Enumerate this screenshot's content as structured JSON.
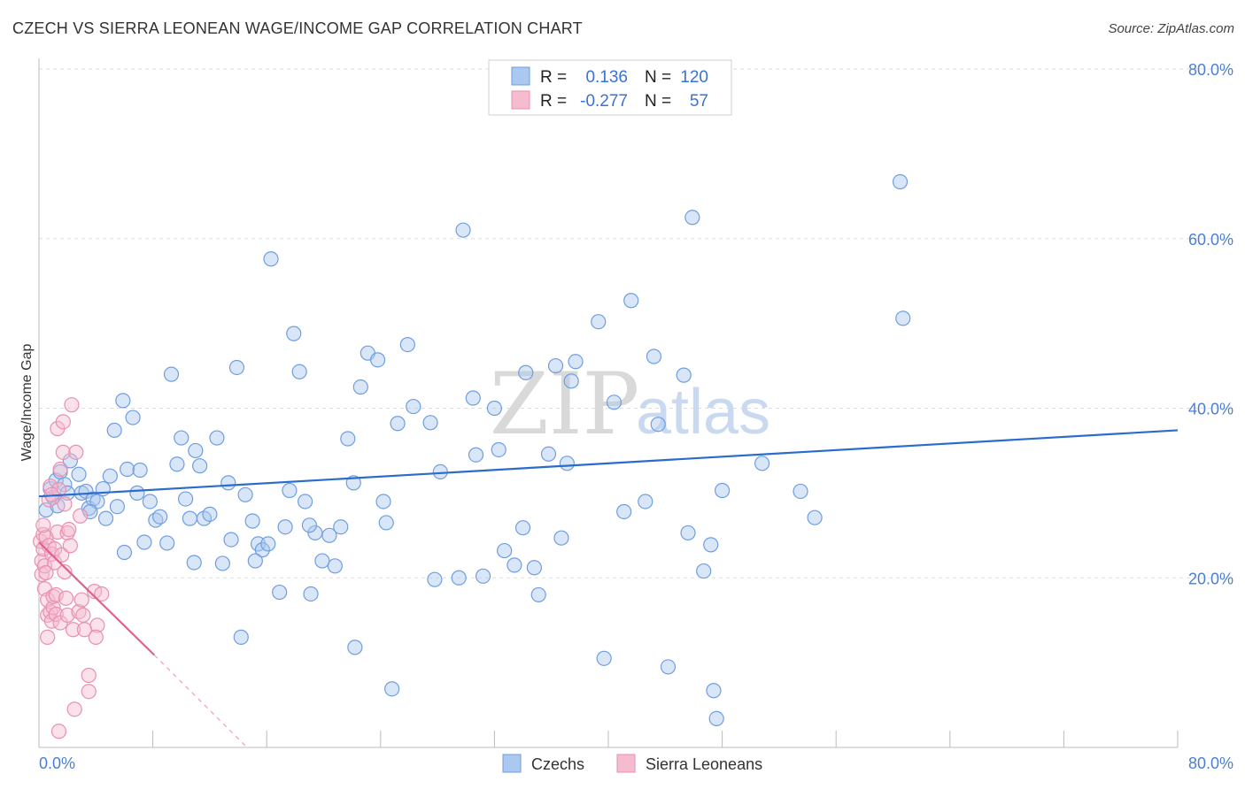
{
  "title": "CZECH VS SIERRA LEONEAN WAGE/INCOME GAP CORRELATION CHART",
  "source": "Source: ZipAtlas.com",
  "watermark": {
    "zip": "ZIP",
    "atlas": "atlas"
  },
  "colors": {
    "czech_fill": "#aac8f0",
    "czech_stroke": "#6f9ee0",
    "czech_line": "#2a6ccc",
    "sierra_fill": "#f5bcd0",
    "sierra_stroke": "#ea8fb0",
    "sierra_line": "#e0608e",
    "tick": "#4a7fd4",
    "grid": "#dddddd"
  },
  "legend": {
    "rows": [
      {
        "r_label": "R =",
        "r_value": "0.136",
        "n_label": "N =",
        "n_value": "120"
      },
      {
        "r_label": "R =",
        "r_value": "-0.277",
        "n_label": "N =",
        "n_value": "57"
      }
    ]
  },
  "bottom_legend": [
    "Czechs",
    "Sierra Leoneans"
  ],
  "chart_data": {
    "type": "scatter",
    "title": "CZECH VS SIERRA LEONEAN WAGE/INCOME GAP CORRELATION CHART",
    "xlabel": "",
    "ylabel": "Wage/Income Gap",
    "xlim": [
      0,
      80
    ],
    "ylim": [
      0,
      80
    ],
    "x_tick_labels": [
      "0.0%",
      "80.0%"
    ],
    "y_tick_labels": [
      "20.0%",
      "40.0%",
      "60.0%",
      "80.0%"
    ],
    "y_ticks": [
      20,
      40,
      60,
      80
    ],
    "grid": true,
    "legend_position": "top-center",
    "series": [
      {
        "name": "Czechs",
        "r": 0.136,
        "n": 120,
        "trend": {
          "x": [
            0,
            80
          ],
          "y": [
            29.6,
            37.4
          ]
        },
        "points": [
          [
            0.5,
            28.0
          ],
          [
            0.8,
            30.5
          ],
          [
            1.0,
            29.5
          ],
          [
            1.2,
            31.5
          ],
          [
            1.3,
            28.5
          ],
          [
            1.5,
            32.5
          ],
          [
            1.8,
            31.0
          ],
          [
            2.0,
            30.0
          ],
          [
            2.2,
            33.8
          ],
          [
            2.8,
            32.2
          ],
          [
            3.0,
            30.0
          ],
          [
            3.3,
            30.2
          ],
          [
            3.5,
            28.2
          ],
          [
            3.8,
            29.3
          ],
          [
            4.1,
            29.0
          ],
          [
            4.5,
            30.5
          ],
          [
            4.7,
            27.0
          ],
          [
            5.0,
            32.0
          ],
          [
            5.3,
            37.4
          ],
          [
            5.5,
            28.4
          ],
          [
            5.9,
            40.9
          ],
          [
            6.2,
            32.8
          ],
          [
            6.6,
            38.9
          ],
          [
            6.9,
            30.0
          ],
          [
            7.1,
            32.7
          ],
          [
            7.4,
            24.2
          ],
          [
            7.8,
            29.0
          ],
          [
            8.2,
            26.8
          ],
          [
            8.5,
            27.2
          ],
          [
            9.0,
            24.1
          ],
          [
            9.3,
            44.0
          ],
          [
            9.7,
            33.4
          ],
          [
            10.0,
            36.5
          ],
          [
            10.3,
            29.3
          ],
          [
            10.6,
            27.0
          ],
          [
            10.9,
            21.8
          ],
          [
            11.3,
            33.2
          ],
          [
            11.6,
            27.0
          ],
          [
            12.0,
            27.5
          ],
          [
            12.5,
            36.5
          ],
          [
            12.9,
            21.7
          ],
          [
            13.3,
            31.2
          ],
          [
            13.9,
            44.8
          ],
          [
            14.5,
            29.8
          ],
          [
            15.0,
            26.7
          ],
          [
            15.4,
            24.0
          ],
          [
            15.7,
            23.3
          ],
          [
            16.1,
            24.0
          ],
          [
            16.3,
            57.6
          ],
          [
            16.9,
            18.3
          ],
          [
            17.3,
            26.0
          ],
          [
            17.6,
            30.3
          ],
          [
            17.9,
            48.8
          ],
          [
            18.3,
            44.3
          ],
          [
            18.7,
            29.0
          ],
          [
            19.1,
            18.1
          ],
          [
            19.4,
            25.3
          ],
          [
            19.9,
            22.0
          ],
          [
            20.4,
            25.0
          ],
          [
            20.8,
            21.4
          ],
          [
            21.2,
            26.0
          ],
          [
            21.7,
            36.4
          ],
          [
            22.1,
            31.2
          ],
          [
            22.6,
            42.5
          ],
          [
            23.1,
            46.5
          ],
          [
            23.8,
            45.7
          ],
          [
            24.2,
            29.0
          ],
          [
            24.4,
            26.5
          ],
          [
            25.2,
            38.2
          ],
          [
            25.9,
            47.5
          ],
          [
            26.3,
            40.2
          ],
          [
            27.5,
            38.3
          ],
          [
            27.8,
            19.8
          ],
          [
            28.2,
            32.5
          ],
          [
            29.5,
            20.0
          ],
          [
            29.8,
            61.0
          ],
          [
            30.5,
            41.2
          ],
          [
            30.7,
            34.5
          ],
          [
            31.2,
            20.2
          ],
          [
            32.0,
            40.0
          ],
          [
            32.3,
            35.1
          ],
          [
            32.7,
            23.2
          ],
          [
            33.4,
            21.5
          ],
          [
            34.0,
            25.9
          ],
          [
            34.8,
            21.2
          ],
          [
            34.2,
            44.2
          ],
          [
            35.1,
            18.0
          ],
          [
            35.8,
            34.6
          ],
          [
            36.3,
            45.0
          ],
          [
            36.7,
            24.7
          ],
          [
            37.1,
            33.5
          ],
          [
            37.4,
            43.2
          ],
          [
            37.7,
            45.5
          ],
          [
            39.3,
            50.2
          ],
          [
            39.7,
            10.5
          ],
          [
            40.4,
            40.7
          ],
          [
            41.1,
            27.8
          ],
          [
            41.6,
            52.7
          ],
          [
            42.6,
            29.0
          ],
          [
            43.2,
            46.1
          ],
          [
            43.5,
            38.1
          ],
          [
            44.2,
            9.5
          ],
          [
            45.3,
            43.9
          ],
          [
            45.6,
            25.3
          ],
          [
            45.9,
            62.5
          ],
          [
            46.7,
            20.8
          ],
          [
            47.2,
            23.9
          ],
          [
            47.4,
            6.7
          ],
          [
            47.6,
            3.4
          ],
          [
            48.0,
            30.3
          ],
          [
            50.8,
            33.5
          ],
          [
            53.5,
            30.2
          ],
          [
            54.5,
            27.1
          ],
          [
            60.5,
            66.7
          ],
          [
            60.7,
            50.6
          ],
          [
            13.5,
            24.5
          ],
          [
            14.2,
            13.0
          ],
          [
            22.2,
            11.8
          ],
          [
            24.8,
            6.9
          ],
          [
            19.0,
            26.2
          ],
          [
            11.0,
            35.0
          ],
          [
            6.0,
            23.0
          ],
          [
            3.6,
            27.8
          ],
          [
            15.2,
            22.0
          ]
        ]
      },
      {
        "name": "Sierra Leoneans",
        "r": -0.277,
        "n": 57,
        "trend": {
          "x": [
            0,
            8.1
          ],
          "y": [
            24.2,
            10.9
          ]
        },
        "trend_dashed": {
          "x": [
            8.1,
            14.5
          ],
          "y": [
            10.9,
            0.2
          ]
        },
        "points": [
          [
            0.1,
            24.3
          ],
          [
            0.2,
            22.0
          ],
          [
            0.2,
            20.4
          ],
          [
            0.3,
            25.1
          ],
          [
            0.3,
            23.4
          ],
          [
            0.4,
            18.7
          ],
          [
            0.4,
            21.4
          ],
          [
            0.5,
            24.8
          ],
          [
            0.5,
            20.6
          ],
          [
            0.6,
            17.4
          ],
          [
            0.6,
            15.6
          ],
          [
            0.7,
            29.2
          ],
          [
            0.7,
            23.8
          ],
          [
            0.8,
            16.0
          ],
          [
            0.8,
            30.8
          ],
          [
            0.9,
            22.8
          ],
          [
            0.9,
            14.9
          ],
          [
            1.0,
            16.5
          ],
          [
            1.0,
            17.8
          ],
          [
            1.1,
            23.4
          ],
          [
            1.1,
            21.8
          ],
          [
            1.2,
            18.0
          ],
          [
            1.2,
            15.7
          ],
          [
            1.3,
            37.6
          ],
          [
            1.3,
            25.4
          ],
          [
            1.4,
            30.4
          ],
          [
            1.5,
            32.8
          ],
          [
            1.5,
            14.7
          ],
          [
            1.6,
            22.7
          ],
          [
            1.7,
            38.4
          ],
          [
            1.7,
            34.8
          ],
          [
            1.8,
            20.7
          ],
          [
            1.8,
            28.7
          ],
          [
            1.9,
            17.6
          ],
          [
            2.0,
            25.3
          ],
          [
            2.0,
            15.6
          ],
          [
            2.1,
            25.7
          ],
          [
            2.2,
            23.8
          ],
          [
            2.3,
            40.4
          ],
          [
            2.4,
            13.9
          ],
          [
            2.6,
            34.8
          ],
          [
            2.8,
            16.0
          ],
          [
            2.9,
            27.3
          ],
          [
            3.0,
            17.4
          ],
          [
            3.1,
            15.6
          ],
          [
            3.2,
            13.9
          ],
          [
            3.5,
            8.5
          ],
          [
            3.5,
            6.6
          ],
          [
            3.9,
            18.4
          ],
          [
            4.1,
            14.4
          ],
          [
            4.4,
            18.1
          ],
          [
            2.5,
            4.5
          ],
          [
            1.4,
            1.9
          ],
          [
            0.6,
            13.0
          ],
          [
            0.3,
            26.2
          ],
          [
            0.9,
            29.8
          ],
          [
            4.0,
            13.0
          ]
        ]
      }
    ]
  }
}
